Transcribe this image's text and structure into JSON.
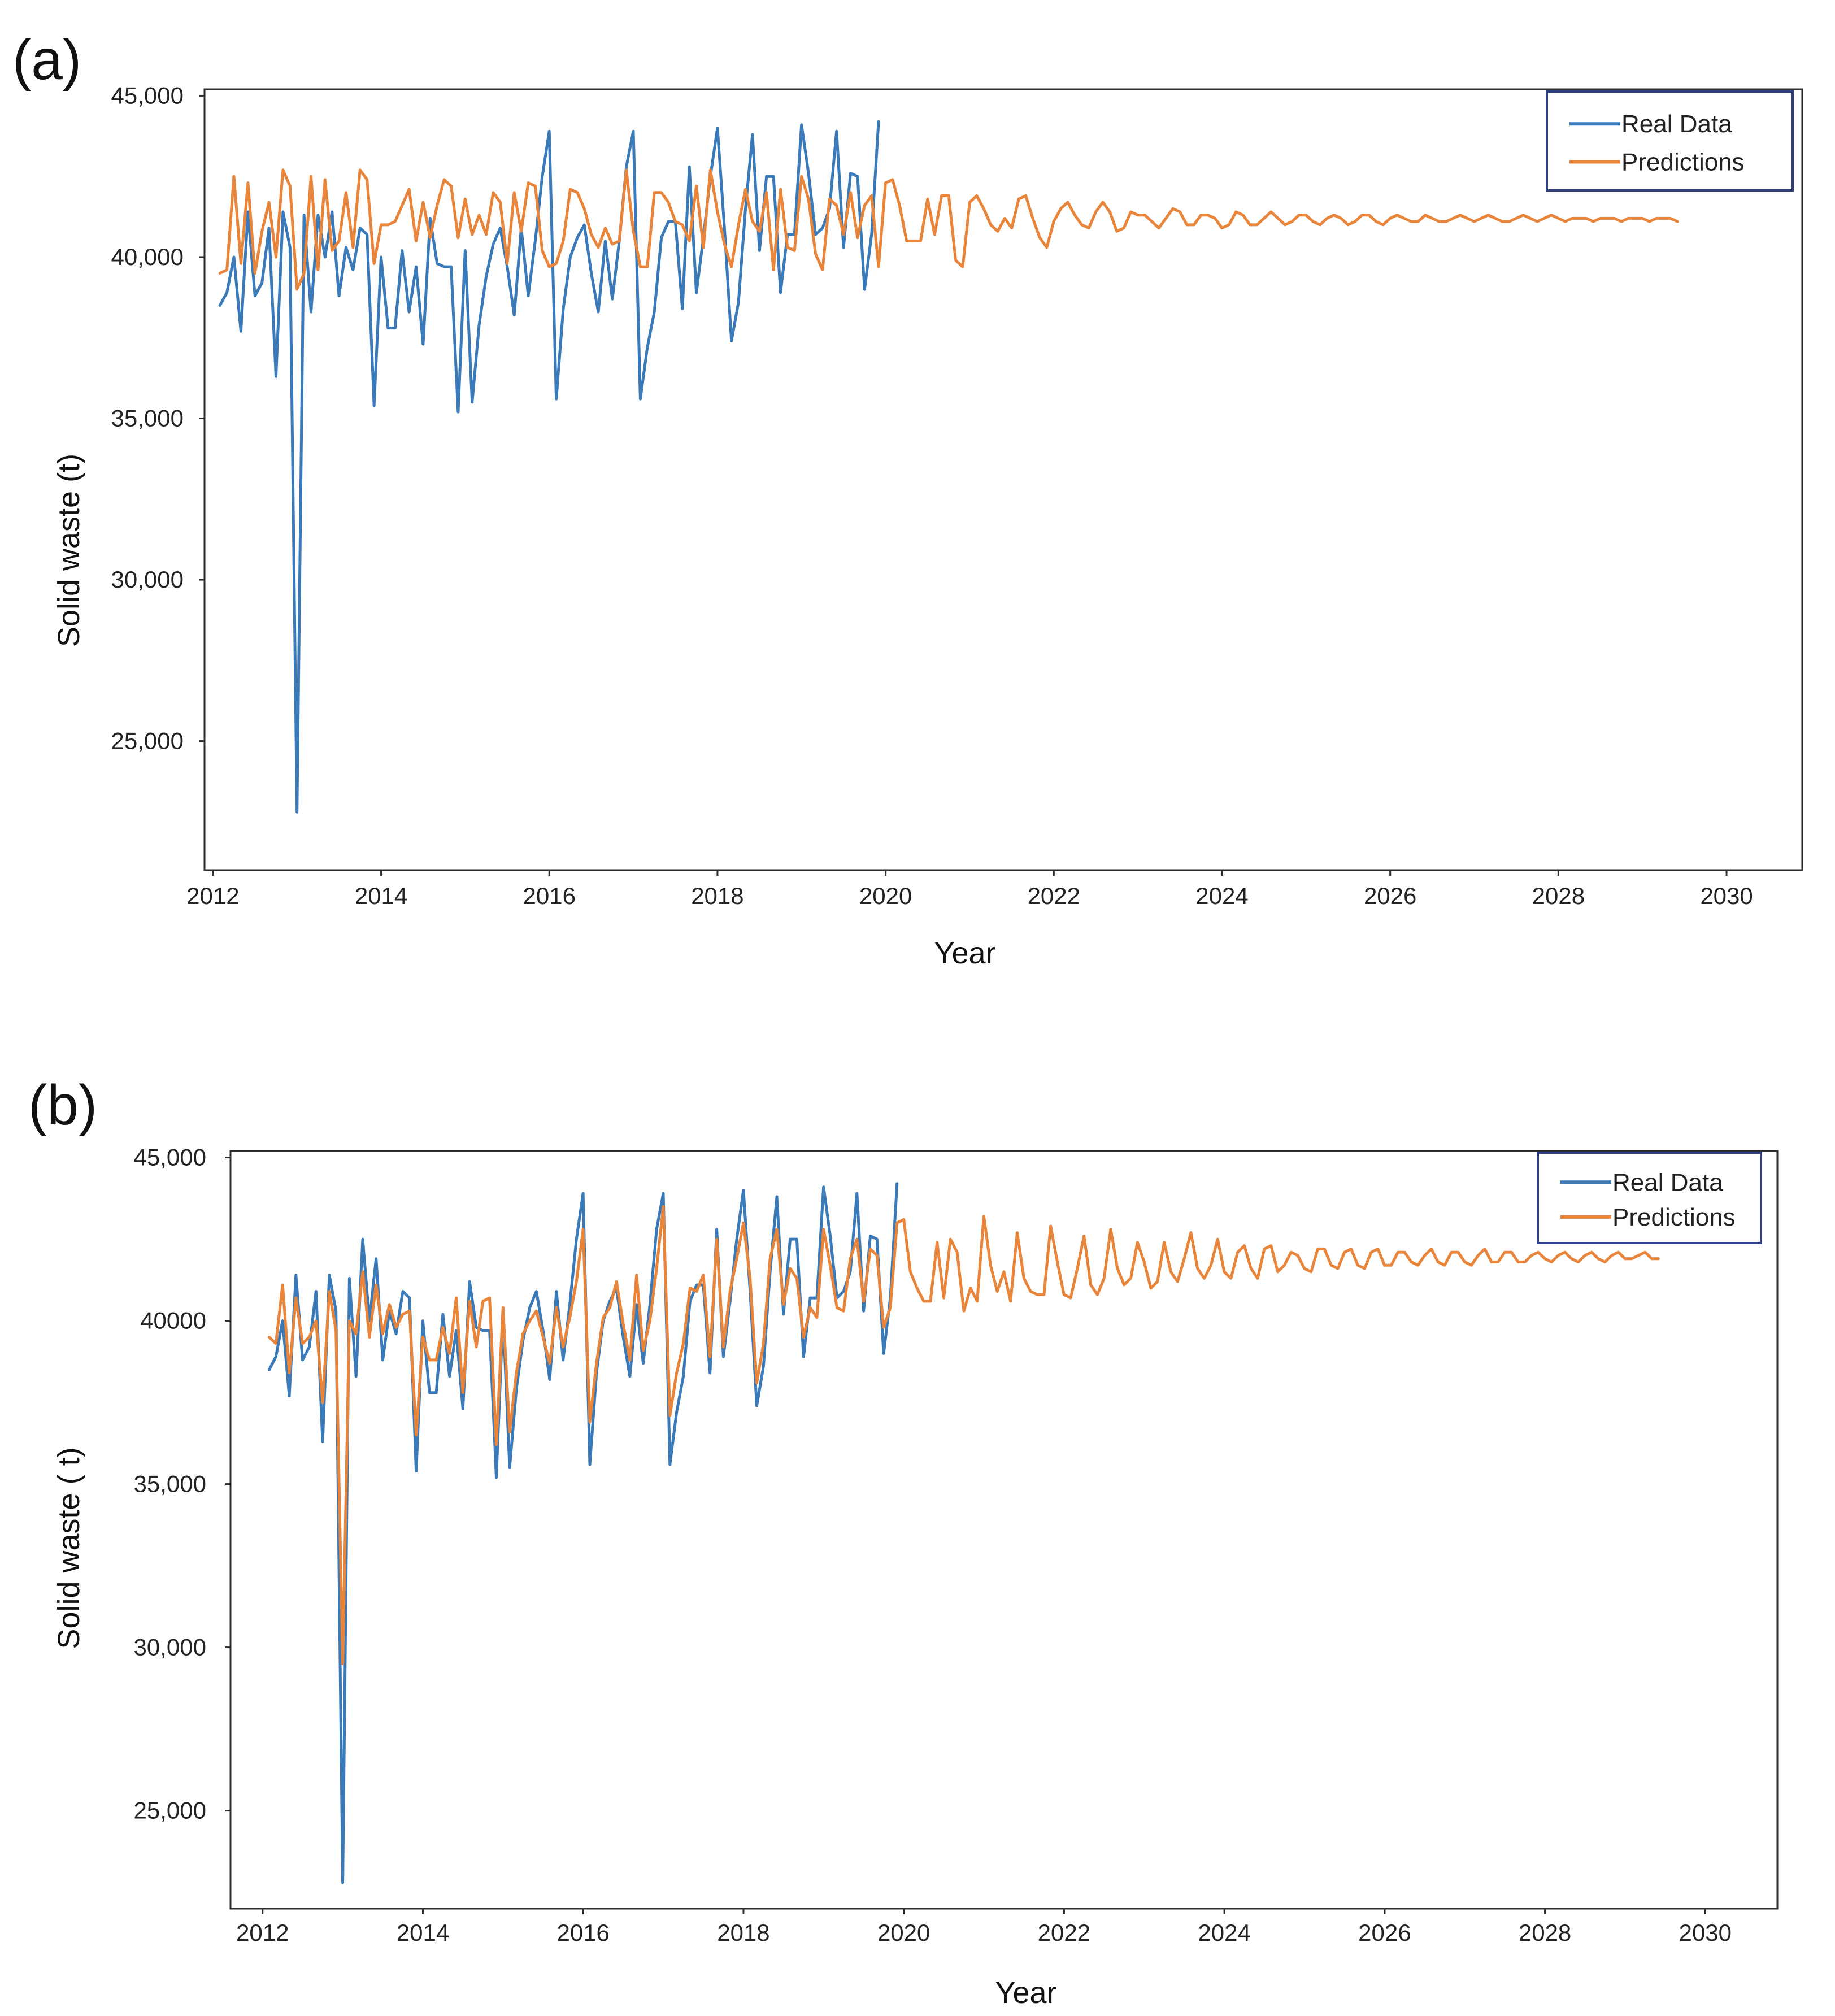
{
  "chart_data": [
    {
      "type": "line",
      "panel_label": "(a)",
      "title": "",
      "xlabel": "Year",
      "ylabel": "Solid waste (t)",
      "xlim": [
        2011.9,
        2030.9
      ],
      "ylim": [
        21000,
        45200
      ],
      "xticks": [
        2012,
        2014,
        2016,
        2018,
        2020,
        2022,
        2024,
        2026,
        2028,
        2030
      ],
      "xtick_labels": [
        "2012",
        "2014",
        "2016",
        "2018",
        "2020",
        "2022",
        "2024",
        "2026",
        "2028",
        "2030"
      ],
      "yticks": [
        25000,
        30000,
        35000,
        40000,
        45000
      ],
      "ytick_labels": [
        "25,000",
        "30,000",
        "35,000",
        "40,000",
        "45,000"
      ],
      "grid": false,
      "legend": {
        "position": "top-right",
        "entries": [
          "Real Data",
          "Predictions"
        ]
      },
      "series": [
        {
          "name": "Real Data",
          "color": "#3a7ab8",
          "x_start": 2012.083,
          "x_step": 0.08333,
          "values": [
            38500,
            38900,
            40000,
            37700,
            41400,
            38800,
            39200,
            40900,
            36300,
            41400,
            40300,
            22800,
            41300,
            38300,
            41300,
            40000,
            41400,
            38800,
            40300,
            39600,
            40900,
            40700,
            35400,
            40000,
            37800,
            37800,
            40200,
            38300,
            39700,
            37300,
            41200,
            39800,
            39700,
            39700,
            35200,
            40200,
            35500,
            37900,
            39400,
            40400,
            40900,
            39700,
            38200,
            40900,
            38800,
            40500,
            42500,
            43900,
            35600,
            38400,
            40000,
            40600,
            41000,
            39500,
            38300,
            40500,
            38700,
            40500,
            42800,
            43900,
            35600,
            37200,
            38300,
            40600,
            41100,
            41100,
            38400,
            42800,
            38900,
            40600,
            42500,
            44000,
            40900,
            37400,
            38600,
            41500,
            43800,
            40200,
            42500,
            42500,
            38900,
            40700,
            40700,
            44100,
            42600,
            40700,
            40900,
            41500,
            43900,
            40300,
            42600,
            42500,
            39000,
            40700,
            44200
          ]
        },
        {
          "name": "Predictions",
          "color": "#e8853a",
          "x_start": 2012.083,
          "x_step": 0.08333,
          "values": [
            39500,
            39600,
            42500,
            39800,
            42300,
            39500,
            40800,
            41700,
            40000,
            42700,
            42200,
            39000,
            39500,
            42500,
            39600,
            42400,
            40200,
            40500,
            42000,
            40300,
            42700,
            42400,
            39800,
            41000,
            41000,
            41100,
            41600,
            42100,
            40500,
            41700,
            40600,
            41600,
            42400,
            42200,
            40600,
            41800,
            40700,
            41300,
            40700,
            42000,
            41700,
            39800,
            42000,
            40800,
            42300,
            42200,
            40200,
            39700,
            39800,
            40500,
            42100,
            42000,
            41500,
            40700,
            40300,
            40900,
            40400,
            40500,
            42700,
            40800,
            39700,
            39700,
            42000,
            42000,
            41700,
            41100,
            41000,
            40500,
            42200,
            40300,
            42700,
            41400,
            40400,
            39700,
            41000,
            42100,
            41100,
            40800,
            42000,
            39600,
            42100,
            40300,
            40200,
            42500,
            41800,
            40100,
            39600,
            41800,
            41600,
            40700,
            42000,
            40600,
            41600,
            41900,
            39700,
            42300,
            42400,
            41600,
            40500,
            40500,
            40500,
            41800,
            40700,
            41900,
            41900,
            39900,
            39700,
            41700,
            41900,
            41500,
            41000,
            40800,
            41200,
            40900,
            41800,
            41900,
            41200,
            40600,
            40300,
            41100,
            41500,
            41700,
            41300,
            41000,
            40900,
            41400,
            41700,
            41400,
            40800,
            40900,
            41400,
            41300,
            41300,
            41100,
            40900,
            41200,
            41500,
            41400,
            41000,
            41000,
            41300,
            41300,
            41200,
            40900,
            41000,
            41400,
            41300,
            41000,
            41000,
            41200,
            41400,
            41200,
            41000,
            41100,
            41300,
            41300,
            41100,
            41000,
            41200,
            41300,
            41200,
            41000,
            41100,
            41300,
            41300,
            41100,
            41000,
            41200,
            41300,
            41200,
            41100,
            41100,
            41300,
            41200,
            41100,
            41100,
            41200,
            41300,
            41200,
            41100,
            41200,
            41300,
            41200,
            41100,
            41100,
            41200,
            41300,
            41200,
            41100,
            41200,
            41300,
            41200,
            41100,
            41200,
            41200,
            41200,
            41100,
            41200,
            41200,
            41200,
            41100,
            41200,
            41200,
            41200,
            41100,
            41200,
            41200,
            41200,
            41100
          ]
        }
      ]
    },
    {
      "type": "line",
      "panel_label": "(b)",
      "title": "",
      "xlabel": "Year",
      "ylabel": "Solid waste ( t)",
      "xlim": [
        2011.6,
        2030.9
      ],
      "ylim": [
        22000,
        45200
      ],
      "xticks": [
        2012,
        2014,
        2016,
        2018,
        2020,
        2022,
        2024,
        2026,
        2028,
        2030
      ],
      "xtick_labels": [
        "2012",
        "2014",
        "2016",
        "2018",
        "2020",
        "2022",
        "2024",
        "2026",
        "2028",
        "2030"
      ],
      "yticks": [
        25000,
        30000,
        35000,
        40000,
        45000
      ],
      "ytick_labels": [
        "25,000",
        "30,000",
        "35,000",
        "40000",
        "45,000"
      ],
      "grid": false,
      "legend": {
        "position": "top-right",
        "entries": [
          "Real Data",
          "Predictions"
        ]
      },
      "series": [
        {
          "name": "Real Data",
          "color": "#3a7ab8",
          "x_start": 2012.083,
          "x_step": 0.08333,
          "values": [
            38500,
            38900,
            40000,
            37700,
            41400,
            38800,
            39200,
            40900,
            36300,
            41400,
            40300,
            22800,
            41300,
            38300,
            42500,
            40000,
            41900,
            38800,
            40300,
            39600,
            40900,
            40700,
            35400,
            40000,
            37800,
            37800,
            40200,
            38300,
            39700,
            37300,
            41200,
            39800,
            39700,
            39700,
            35200,
            40200,
            35500,
            37900,
            39400,
            40400,
            40900,
            39700,
            38200,
            40900,
            38800,
            40500,
            42500,
            43900,
            35600,
            38400,
            40000,
            40600,
            41000,
            39500,
            38300,
            40500,
            38700,
            40500,
            42800,
            43900,
            35600,
            37200,
            38300,
            40600,
            41100,
            41100,
            38400,
            42800,
            38900,
            40600,
            42500,
            44000,
            40900,
            37400,
            38600,
            41500,
            43800,
            40200,
            42500,
            42500,
            38900,
            40700,
            40700,
            44100,
            42600,
            40700,
            40900,
            41500,
            43900,
            40300,
            42600,
            42500,
            39000,
            40700,
            44200
          ]
        },
        {
          "name": "Predictions",
          "color": "#e8853a",
          "x_start": 2012.083,
          "x_step": 0.08333,
          "values": [
            39500,
            39300,
            41100,
            38400,
            40700,
            39300,
            39500,
            40000,
            37500,
            40900,
            39700,
            29500,
            40000,
            39600,
            41500,
            39500,
            41100,
            39600,
            40500,
            39800,
            40200,
            40300,
            36500,
            39500,
            38800,
            38800,
            39800,
            39000,
            40700,
            37800,
            40600,
            39200,
            40600,
            40700,
            36200,
            40400,
            36600,
            38400,
            39600,
            40000,
            40300,
            39500,
            38700,
            40400,
            39200,
            40100,
            41200,
            42800,
            36900,
            38700,
            40100,
            40400,
            41200,
            39900,
            38800,
            41400,
            39100,
            40000,
            41600,
            43500,
            37100,
            38400,
            39300,
            41000,
            40900,
            41400,
            38900,
            42500,
            39200,
            40900,
            41900,
            43000,
            41300,
            38100,
            39300,
            41900,
            42800,
            40500,
            41600,
            41300,
            39500,
            40400,
            40100,
            42800,
            41700,
            40400,
            40300,
            41900,
            42500,
            40600,
            42200,
            42000,
            39800,
            40400,
            43000,
            43100,
            41500,
            41000,
            40600,
            40600,
            42400,
            40700,
            42500,
            42100,
            40300,
            41000,
            40600,
            43200,
            41700,
            40900,
            41500,
            40600,
            42700,
            41300,
            40900,
            40800,
            40800,
            42900,
            41800,
            40800,
            40700,
            41600,
            42600,
            41100,
            40800,
            41300,
            42800,
            41600,
            41100,
            41300,
            42400,
            41800,
            41000,
            41200,
            42400,
            41500,
            41200,
            41900,
            42700,
            41600,
            41300,
            41700,
            42500,
            41500,
            41300,
            42100,
            42300,
            41600,
            41300,
            42200,
            42300,
            41500,
            41700,
            42100,
            42000,
            41600,
            41500,
            42200,
            42200,
            41700,
            41600,
            42100,
            42200,
            41700,
            41600,
            42100,
            42200,
            41700,
            41700,
            42100,
            42100,
            41800,
            41700,
            42000,
            42200,
            41800,
            41700,
            42100,
            42100,
            41800,
            41700,
            42000,
            42200,
            41800,
            41800,
            42100,
            42100,
            41800,
            41800,
            42000,
            42100,
            41900,
            41800,
            42000,
            42100,
            41900,
            41800,
            42000,
            42100,
            41900,
            41800,
            42000,
            42100,
            41900,
            41900,
            42000,
            42100,
            41900,
            41900
          ]
        }
      ]
    }
  ]
}
